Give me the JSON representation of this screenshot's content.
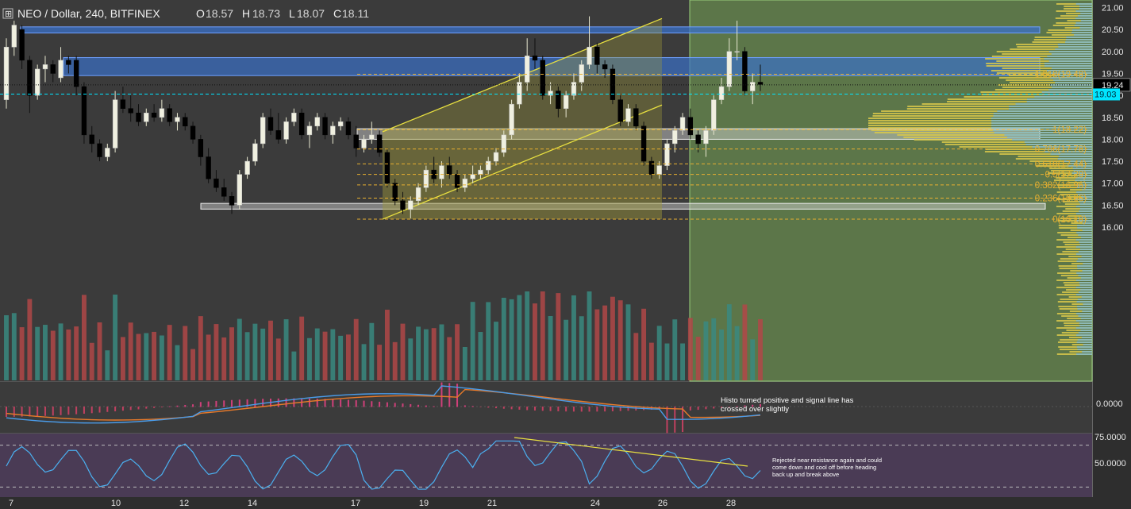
{
  "header": {
    "symbol": "NEO / Dollar, 240, BITFINEX",
    "o_label": "O",
    "o_value": "18.57",
    "h_label": "H",
    "h_value": "18.73",
    "l_label": "L",
    "l_value": "18.07",
    "c_label": "C",
    "c_value": "18.11"
  },
  "colors": {
    "background": "#3b3b3b",
    "up_candle": "#f0f0e0",
    "down_candle": "#000000",
    "volume_up": "#3a8a80",
    "volume_down": "#b04848",
    "macd_line": "#4a9be8",
    "signal_line": "#e87a2a",
    "rsi_line": "#4ab0f0",
    "fib_color": "#e8b030",
    "resistance_zone": "#3a70c8",
    "channel_color": "#e8e040",
    "forecast_zone": "#7aa85a",
    "price_tag": "#000000",
    "cyan_tag": "#00e5ff"
  },
  "price_axis": {
    "ticks": [
      "21.00",
      "20.50",
      "20.00",
      "19.50",
      "19.00",
      "18.50",
      "18.00",
      "17.50",
      "17.00",
      "16.50",
      "16.00"
    ],
    "current_price": "19.24",
    "cyan_price": "19.03"
  },
  "time_axis": {
    "ticks": [
      "7",
      "10",
      "12",
      "14",
      "17",
      "19",
      "21",
      "24",
      "26",
      "28"
    ]
  },
  "fib_levels": [
    {
      "label": "1.618(19.48)",
      "price": 19.48
    },
    {
      "label": "1(18.22)",
      "price": 18.22
    },
    {
      "label": "0.786(17.78)",
      "price": 17.78
    },
    {
      "label": "0.618(17.44)",
      "price": 17.44
    },
    {
      "label": "0.5(17.20)",
      "price": 17.2
    },
    {
      "label": "0.382(16.96)",
      "price": 16.96
    },
    {
      "label": "0.236(16.66)",
      "price": 16.66
    },
    {
      "label": "0(16.18)",
      "price": 16.18
    }
  ],
  "macd": {
    "axis_label": "0.0000",
    "note": [
      "Histo turned positive and signal line has",
      "crossed over slightly"
    ]
  },
  "rsi": {
    "axis_labels": [
      "75.0000",
      "50.0000"
    ],
    "note": [
      "Rejected near resistance again and could",
      "come down and cool off before heading",
      "back up and break above"
    ]
  },
  "chart_data": {
    "type": "candlestick",
    "title": "NEO / Dollar, 240, BITFINEX",
    "ylim": [
      15.9,
      21.05
    ],
    "x_tick_labels": [
      "7",
      "10",
      "12",
      "14",
      "17",
      "19",
      "21",
      "24",
      "26",
      "28"
    ],
    "annotations": {
      "resistance_zones": [
        [
          20.42,
          20.56
        ],
        [
          19.45,
          19.86
        ]
      ],
      "support_zones": [
        [
          18.0,
          18.24
        ],
        [
          16.41,
          16.54
        ]
      ],
      "rising_channel": {
        "lower_start": 16.18,
        "lower_end": 18.78,
        "upper_start": 18.17,
        "upper_end": 20.75
      },
      "fib_retracement": "16.18 to 18.22 with 1.618 extension at 19.48"
    },
    "candles": [
      [
        18.9,
        20.3,
        18.7,
        20.1
      ],
      [
        20.1,
        20.7,
        19.9,
        20.6
      ],
      [
        20.5,
        20.6,
        19.6,
        19.8
      ],
      [
        19.8,
        19.9,
        18.6,
        19.0
      ],
      [
        19.0,
        19.7,
        18.9,
        19.6
      ],
      [
        19.6,
        19.9,
        19.3,
        19.7
      ],
      [
        19.7,
        19.8,
        19.3,
        19.5
      ],
      [
        19.4,
        20.1,
        19.3,
        19.8
      ],
      [
        19.8,
        19.9,
        19.5,
        19.7
      ],
      [
        19.8,
        19.9,
        19.0,
        19.2
      ],
      [
        19.2,
        19.3,
        17.9,
        18.1
      ],
      [
        18.1,
        18.3,
        17.7,
        17.9
      ],
      [
        17.9,
        18.0,
        17.5,
        17.6
      ],
      [
        17.6,
        17.9,
        17.5,
        17.8
      ],
      [
        17.8,
        19.1,
        17.7,
        18.9
      ],
      [
        18.9,
        19.2,
        18.6,
        18.7
      ],
      [
        18.7,
        19.0,
        18.4,
        18.6
      ],
      [
        18.6,
        18.8,
        18.3,
        18.4
      ],
      [
        18.4,
        18.7,
        18.3,
        18.6
      ],
      [
        18.6,
        18.8,
        18.4,
        18.5
      ],
      [
        18.5,
        18.9,
        18.4,
        18.7
      ],
      [
        18.7,
        18.8,
        18.3,
        18.4
      ],
      [
        18.4,
        18.6,
        18.2,
        18.5
      ],
      [
        18.5,
        18.6,
        18.2,
        18.3
      ],
      [
        18.3,
        18.4,
        17.9,
        18.0
      ],
      [
        18.0,
        18.1,
        17.4,
        17.6
      ],
      [
        17.6,
        17.8,
        17.0,
        17.1
      ],
      [
        17.1,
        17.3,
        16.8,
        16.9
      ],
      [
        16.9,
        17.1,
        16.6,
        16.7
      ],
      [
        16.7,
        16.8,
        16.3,
        16.5
      ],
      [
        16.5,
        17.3,
        16.4,
        17.2
      ],
      [
        17.2,
        17.6,
        17.1,
        17.5
      ],
      [
        17.5,
        18.0,
        17.4,
        17.9
      ],
      [
        17.9,
        18.6,
        17.8,
        18.5
      ],
      [
        18.5,
        18.7,
        18.1,
        18.2
      ],
      [
        18.2,
        18.6,
        17.9,
        18.0
      ],
      [
        18.0,
        18.5,
        17.9,
        18.4
      ],
      [
        18.4,
        18.7,
        18.3,
        18.6
      ],
      [
        18.6,
        18.7,
        18.0,
        18.1
      ],
      [
        18.1,
        18.4,
        17.8,
        18.3
      ],
      [
        18.3,
        18.6,
        18.2,
        18.5
      ],
      [
        18.5,
        18.6,
        18.0,
        18.1
      ],
      [
        18.1,
        18.4,
        17.9,
        18.3
      ],
      [
        18.3,
        18.5,
        18.2,
        18.4
      ],
      [
        18.4,
        18.5,
        18.0,
        18.1
      ],
      [
        18.1,
        18.3,
        17.6,
        17.8
      ],
      [
        17.8,
        18.1,
        17.7,
        18.0
      ],
      [
        18.0,
        18.4,
        17.9,
        18.1
      ],
      [
        18.1,
        18.2,
        17.6,
        17.7
      ],
      [
        17.7,
        17.8,
        16.9,
        17.0
      ],
      [
        17.0,
        17.1,
        16.5,
        16.6
      ],
      [
        16.6,
        16.8,
        16.3,
        16.4
      ],
      [
        16.4,
        16.7,
        16.2,
        16.6
      ],
      [
        16.6,
        17.0,
        16.5,
        16.9
      ],
      [
        16.9,
        17.4,
        16.8,
        17.3
      ],
      [
        17.3,
        17.6,
        17.0,
        17.1
      ],
      [
        17.1,
        17.5,
        16.9,
        17.4
      ],
      [
        17.4,
        17.6,
        17.1,
        17.2
      ],
      [
        17.2,
        17.3,
        16.8,
        16.9
      ],
      [
        16.9,
        17.2,
        16.8,
        17.1
      ],
      [
        17.1,
        17.4,
        17.0,
        17.2
      ],
      [
        17.2,
        17.4,
        17.1,
        17.3
      ],
      [
        17.3,
        17.6,
        17.2,
        17.5
      ],
      [
        17.5,
        17.8,
        17.4,
        17.7
      ],
      [
        17.7,
        18.2,
        17.6,
        18.1
      ],
      [
        18.1,
        18.9,
        18.0,
        18.8
      ],
      [
        18.8,
        19.5,
        18.7,
        19.3
      ],
      [
        19.3,
        20.3,
        19.1,
        19.9
      ],
      [
        19.9,
        20.3,
        19.6,
        19.8
      ],
      [
        19.8,
        19.9,
        18.9,
        19.0
      ],
      [
        19.0,
        19.3,
        18.8,
        19.1
      ],
      [
        19.1,
        19.2,
        18.5,
        18.7
      ],
      [
        18.7,
        19.1,
        18.5,
        19.0
      ],
      [
        19.0,
        19.5,
        18.9,
        19.3
      ],
      [
        19.3,
        19.8,
        19.1,
        19.7
      ],
      [
        19.7,
        20.8,
        19.6,
        20.1
      ],
      [
        20.1,
        20.2,
        19.5,
        19.7
      ],
      [
        19.7,
        19.8,
        19.4,
        19.6
      ],
      [
        19.6,
        19.7,
        18.8,
        18.9
      ],
      [
        18.9,
        19.0,
        18.3,
        18.4
      ],
      [
        18.4,
        18.8,
        18.3,
        18.7
      ],
      [
        18.7,
        18.8,
        18.2,
        18.3
      ],
      [
        18.3,
        18.4,
        17.4,
        17.5
      ],
      [
        17.5,
        17.6,
        17.1,
        17.2
      ],
      [
        17.2,
        17.5,
        17.1,
        17.4
      ],
      [
        17.4,
        18.0,
        17.3,
        17.9
      ],
      [
        17.9,
        18.3,
        17.7,
        18.2
      ],
      [
        18.2,
        18.6,
        18.1,
        18.5
      ],
      [
        18.5,
        18.7,
        18.0,
        18.1
      ],
      [
        18.1,
        18.2,
        17.7,
        17.9
      ],
      [
        17.9,
        18.3,
        17.6,
        18.2
      ],
      [
        18.2,
        19.0,
        18.1,
        18.9
      ],
      [
        18.9,
        19.4,
        18.8,
        19.2
      ],
      [
        19.2,
        20.3,
        19.1,
        20.0
      ],
      [
        20.0,
        20.7,
        19.8,
        20.0
      ],
      [
        20.0,
        20.1,
        19.0,
        19.1
      ],
      [
        19.1,
        19.5,
        18.8,
        19.3
      ],
      [
        19.3,
        19.7,
        19.1,
        19.25
      ]
    ],
    "volume_tendency": "higher on sell-off candles mid-chart, spike near 21 and 23"
  }
}
